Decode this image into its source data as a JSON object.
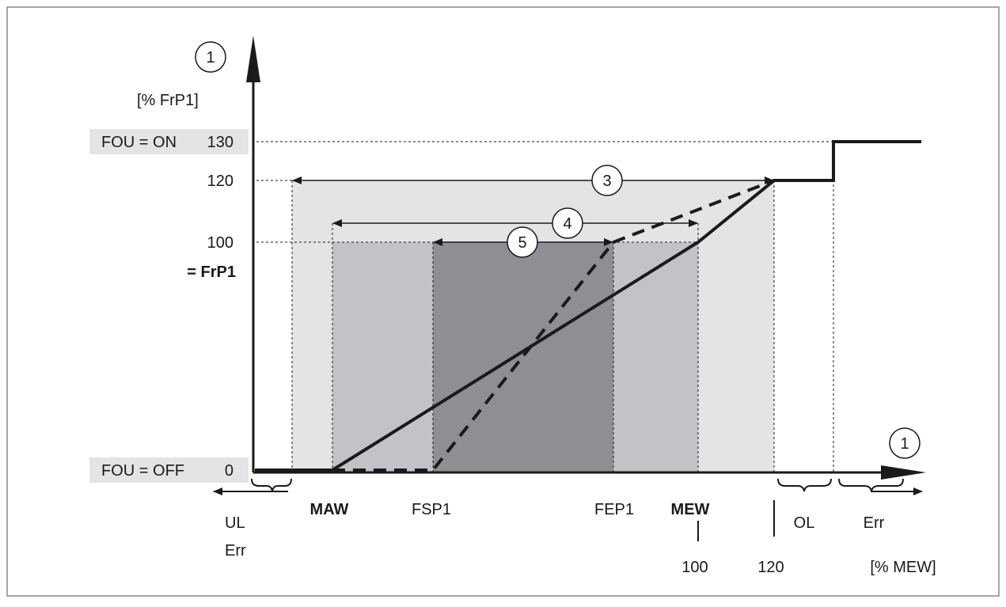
{
  "y_axis": {
    "circle_label": "1",
    "unit_label": "[% FrP1]",
    "ticks": [
      "130",
      "120",
      "100",
      "0"
    ],
    "frp1_label": "= FrP1",
    "fou_on_label": "FOU = ON",
    "fou_off_label": "FOU = OFF"
  },
  "x_axis": {
    "circle_label": "1",
    "unit_label": "[% MEW]",
    "ticks": {
      "maw": "MAW",
      "fsp1": "FSP1",
      "fep1": "FEP1",
      "mew": "MEW",
      "mew_value": "100",
      "value_120": "120"
    },
    "regions": {
      "ul": "UL",
      "ul_err": "Err",
      "ol": "OL",
      "err": "Err"
    }
  },
  "ranges": {
    "r3": "3",
    "r4": "4",
    "r5": "5"
  },
  "colors": {
    "zone_outer": "#e3e4e6",
    "zone_mid": "#c1c3c6",
    "zone_inner": "#8e8f92",
    "label_bg": "#e3e4e6",
    "line": "#1a1a1a"
  }
}
